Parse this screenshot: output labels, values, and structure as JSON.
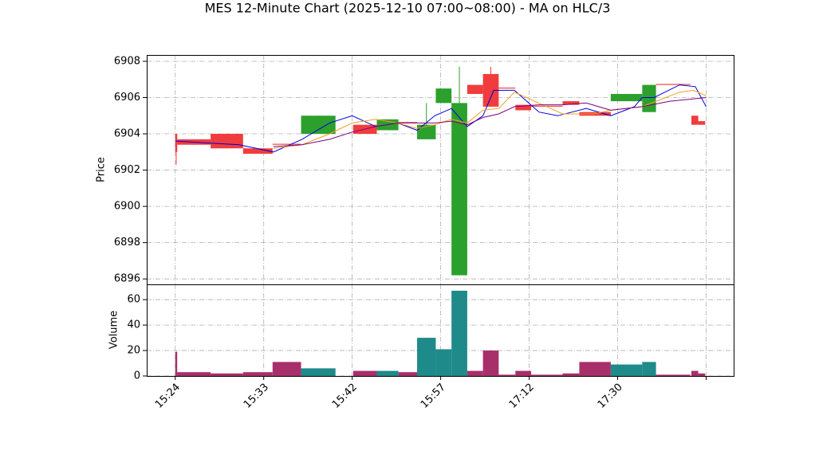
{
  "chart_data": {
    "type": "candlestick",
    "title": "MES 12-Minute Chart (2025-12-10 07:00~08:00) - MA on HLC/3",
    "ylabel": "Price",
    "y2label": "Volume",
    "grid": true,
    "up_color": "#2ca02c",
    "down_color": "#f03c3c",
    "volume_up_color": "#1f8a8a",
    "volume_down_color": "#a8306a",
    "xlim": [
      -2.9,
      56.8
    ],
    "xticks": [
      {
        "value": 0,
        "label": "15:24"
      },
      {
        "value": 9,
        "label": "15:33"
      },
      {
        "value": 18,
        "label": "15:42"
      },
      {
        "value": 27,
        "label": "15:57"
      },
      {
        "value": 36,
        "label": "17:12"
      },
      {
        "value": 45,
        "label": "17:30"
      },
      {
        "value": 54,
        "label": null
      }
    ],
    "ylim": [
      6895.7,
      6908.35
    ],
    "yticks": [
      6896,
      6898,
      6900,
      6902,
      6904,
      6906,
      6908
    ],
    "y2lim": [
      0,
      72
    ],
    "y2ticks": [
      0,
      20,
      40,
      60
    ],
    "x": [
      0,
      0.2,
      3.6,
      6.9,
      9.9,
      12.8,
      18.1,
      20.5,
      22.7,
      24.6,
      26.5,
      28.1,
      29.7,
      31.3,
      32.9,
      34.6,
      36.2,
      39.4,
      41.1,
      44.3,
      47.5,
      48.9,
      52.5,
      53.2
    ],
    "open": [
      6904.0,
      6903.7,
      6904.0,
      6903.2,
      6903.45,
      6904.0,
      6904.5,
      6904.2,
      6904.65,
      6903.7,
      6905.7,
      6896.2,
      6906.7,
      6907.3,
      6906.55,
      6905.6,
      6905.55,
      6905.8,
      6905.2,
      6905.8,
      6905.2,
      6906.75,
      6905.0,
      6904.7
    ],
    "high": [
      6904.0,
      6903.7,
      6904.0,
      6903.2,
      6903.45,
      6905.0,
      6904.5,
      6904.8,
      6904.65,
      6905.7,
      6906.5,
      6907.7,
      6906.7,
      6907.7,
      6906.55,
      6905.6,
      6905.55,
      6905.8,
      6905.2,
      6906.2,
      6906.7,
      6906.75,
      6905.0,
      6904.7
    ],
    "low": [
      6902.3,
      6903.4,
      6903.2,
      6902.9,
      6903.4,
      6904.0,
      6904.0,
      6904.2,
      6904.6,
      6903.7,
      6905.7,
      6896.2,
      6906.2,
      6905.5,
      6906.5,
      6905.3,
      6905.5,
      6905.6,
      6905.0,
      6905.8,
      6905.2,
      6906.7,
      6904.5,
      6904.5
    ],
    "close": [
      6903.0,
      6903.4,
      6903.2,
      6902.9,
      6903.4,
      6905.0,
      6904.0,
      6904.8,
      6904.6,
      6904.5,
      6906.5,
      6905.7,
      6906.2,
      6905.5,
      6906.5,
      6905.3,
      6905.5,
      6905.6,
      6905.0,
      6906.2,
      6906.7,
      6906.7,
      6904.5,
      6904.5
    ],
    "volume": [
      19,
      3,
      2,
      3,
      11,
      6,
      4,
      4,
      3,
      30,
      21,
      67,
      4,
      20,
      1,
      4,
      1,
      2,
      11,
      9,
      11,
      1,
      4,
      2
    ],
    "lines": [
      {
        "color": "#0000dd",
        "x": [
          0,
          6.5,
          10.0,
          12.9,
          15.7,
          18.0,
          20.4,
          22.6,
          24.6,
          26.4,
          28.1,
          29.7,
          31.3,
          32.4,
          34.5,
          37.0,
          38.9,
          41.8,
          44.3,
          46.7,
          47.5,
          48.7,
          51.3,
          52.9,
          54.0
        ],
        "values": [
          6903.6,
          6903.4,
          6903.0,
          6903.7,
          6904.6,
          6905.0,
          6904.4,
          6904.6,
          6904.2,
          6905.0,
          6905.4,
          6904.4,
          6905.0,
          6906.4,
          6906.4,
          6905.2,
          6905.0,
          6905.4,
          6905.0,
          6905.5,
          6906.0,
          6906.0,
          6906.7,
          6906.6,
          6905.5
        ]
      },
      {
        "color": "#f0a020",
        "x": [
          10.0,
          12.9,
          15.7,
          18.0,
          20.4,
          22.6,
          24.6,
          26.4,
          28.1,
          29.7,
          31.3,
          32.9,
          34.5,
          37.8,
          39.4,
          42.6,
          44.3,
          47.5,
          51.3,
          52.7,
          54.0
        ],
        "values": [
          6903.2,
          6903.4,
          6904.0,
          6904.6,
          6904.8,
          6904.6,
          6904.3,
          6904.5,
          6904.8,
          6904.6,
          6905.3,
          6905.4,
          6906.3,
          6905.5,
          6905.1,
          6905.1,
          6905.3,
          6905.5,
          6906.3,
          6906.4,
          6906.1
        ]
      },
      {
        "color": "#800080",
        "x": [
          10.0,
          12.9,
          15.7,
          18.0,
          20.4,
          22.6,
          24.6,
          26.4,
          28.1,
          29.7,
          31.3,
          32.9,
          34.5,
          37.0,
          39.4,
          41.8,
          44.3,
          47.5,
          50.3,
          54.0
        ],
        "values": [
          6903.3,
          6903.4,
          6903.7,
          6904.1,
          6904.4,
          6904.6,
          6904.6,
          6904.6,
          6904.7,
          6904.5,
          6904.9,
          6905.1,
          6905.5,
          6905.6,
          6905.6,
          6905.7,
          6905.3,
          6905.5,
          6905.8,
          6906.0
        ]
      }
    ]
  }
}
